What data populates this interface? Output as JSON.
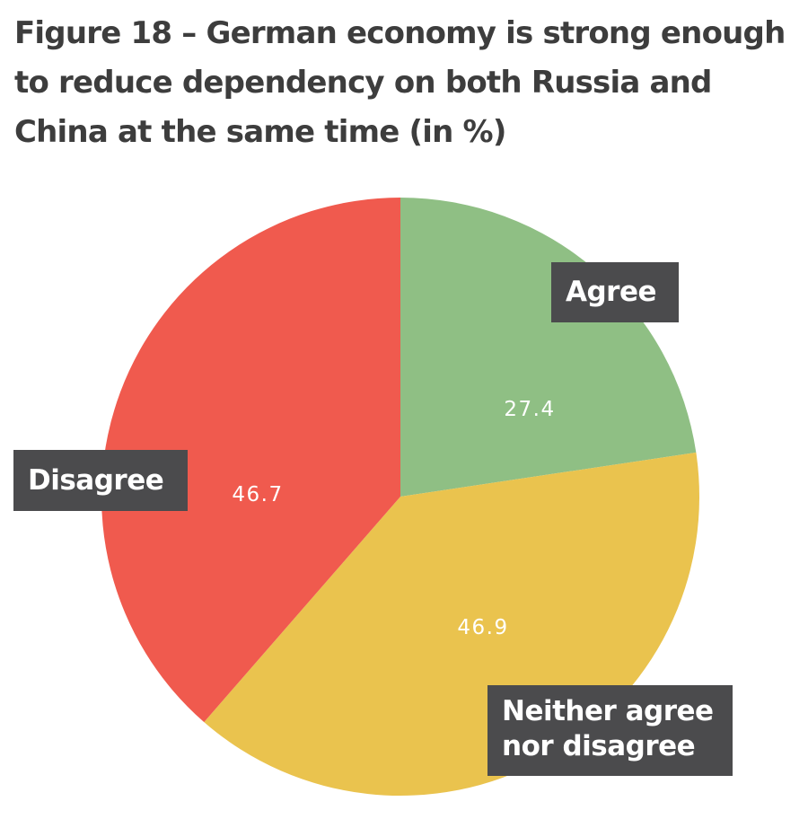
{
  "chart_data": {
    "type": "pie",
    "title": "Figure 18 – German economy is strong enough to reduce dependency on both Russia and China at the same time (in %)",
    "slices": [
      {
        "label": "Agree",
        "value": 27.4,
        "value_label": "27.4",
        "color": "#8fbf84"
      },
      {
        "label": "Neither agree nor disagree",
        "value": 46.9,
        "value_label": "46.9",
        "color": "#eac34e"
      },
      {
        "label": "Disagree",
        "value": 46.7,
        "value_label": "46.7",
        "color": "#f05a4e"
      }
    ]
  },
  "label_box_color": "#4b4b4d"
}
